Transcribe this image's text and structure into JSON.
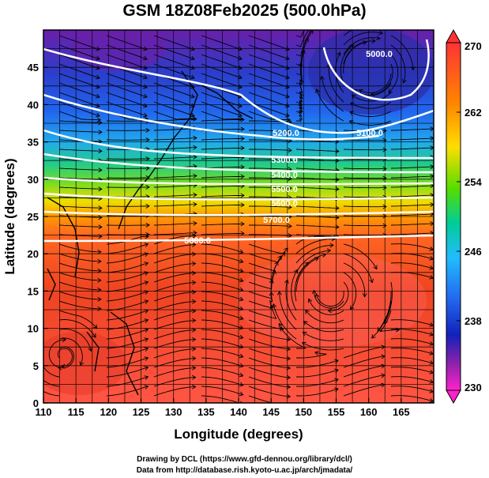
{
  "title": "GSM 18Z08Feb2025 (500.0hPa)",
  "xlabel": "Longitude (degrees)",
  "ylabel": "Latitude  (degrees)",
  "x_ticks": [
    "110",
    "115",
    "120",
    "125",
    "130",
    "135",
    "140",
    "145",
    "150",
    "155",
    "160",
    "165"
  ],
  "y_ticks": [
    "0",
    "5",
    "10",
    "15",
    "20",
    "25",
    "30",
    "35",
    "40",
    "45"
  ],
  "colorbar": {
    "ticks": [
      "270",
      "262",
      "254",
      "246",
      "238",
      "230"
    ],
    "colors": [
      "#ff4444",
      "#ff8800",
      "#ffcc00",
      "#66dd00",
      "#00bb88",
      "#00ccff",
      "#3399ff",
      "#2244dd",
      "#7722bb",
      "#ff33cc"
    ]
  },
  "contours": [
    {
      "label": "5000.0",
      "value": 5000
    },
    {
      "label": "5100.0",
      "value": 5100
    },
    {
      "label": "5200.0",
      "value": 5200
    },
    {
      "label": "5300.0",
      "value": 5300
    },
    {
      "label": "5400.0",
      "value": 5400
    },
    {
      "label": "5500.0",
      "value": 5500
    },
    {
      "label": "5600.0",
      "value": 5600
    },
    {
      "label": "5700.0",
      "value": 5700
    },
    {
      "label": "5800.0",
      "value": 5800
    }
  ],
  "credits": {
    "line1": "Drawing by DCL (https://www.gfd-dennou.org/library/dcl/)",
    "line2": "Data from http://database.rish.kyoto-u.ac.jp/arch/jmadata/"
  }
}
